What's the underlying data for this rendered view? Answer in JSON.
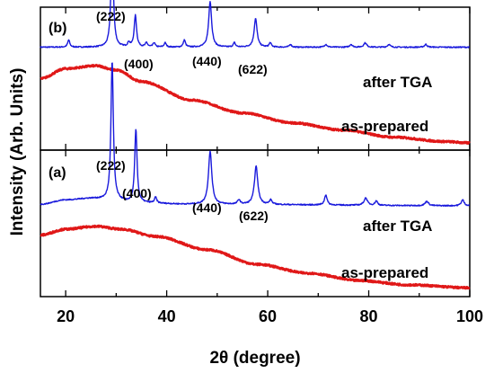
{
  "chart_data": {
    "type": "line",
    "xlabel": "2θ (degree)",
    "ylabel": "Intensity (Arb. Units)",
    "xlim": [
      15,
      100
    ],
    "xticks": [
      20,
      40,
      60,
      80,
      100
    ],
    "grid": false,
    "panels": [
      {
        "label": "(b)",
        "position": "top",
        "series": [
          {
            "name": "after TGA",
            "color": "#1a1adc",
            "baseline": 0.72,
            "peaks": [
              {
                "x": 20.6,
                "h": 0.05,
                "w": 0.25
              },
              {
                "x": 29.2,
                "h": 0.75,
                "w": 0.28
              },
              {
                "x": 32.5,
                "h": 0.03,
                "w": 0.25
              },
              {
                "x": 33.8,
                "h": 0.22,
                "w": 0.28
              },
              {
                "x": 36.0,
                "h": 0.03,
                "w": 0.25
              },
              {
                "x": 37.5,
                "h": 0.03,
                "w": 0.25
              },
              {
                "x": 39.7,
                "h": 0.03,
                "w": 0.25
              },
              {
                "x": 43.5,
                "h": 0.05,
                "w": 0.25
              },
              {
                "x": 48.6,
                "h": 0.32,
                "w": 0.35
              },
              {
                "x": 53.4,
                "h": 0.03,
                "w": 0.25
              },
              {
                "x": 57.6,
                "h": 0.2,
                "w": 0.35
              },
              {
                "x": 60.5,
                "h": 0.03,
                "w": 0.25
              },
              {
                "x": 64.5,
                "h": 0.02,
                "w": 0.25
              },
              {
                "x": 71.5,
                "h": 0.02,
                "w": 0.3
              },
              {
                "x": 76.5,
                "h": 0.02,
                "w": 0.3
              },
              {
                "x": 79.3,
                "h": 0.03,
                "w": 0.35
              },
              {
                "x": 84.0,
                "h": 0.02,
                "w": 0.3
              },
              {
                "x": 91.3,
                "h": 0.02,
                "w": 0.3
              }
            ]
          },
          {
            "name": "as-prepared",
            "color": "#e01818",
            "curve": [
              [
                15,
                0.5
              ],
              [
                20,
                0.57
              ],
              [
                26,
                0.59
              ],
              [
                30,
                0.56
              ],
              [
                35,
                0.48
              ],
              [
                45,
                0.35
              ],
              [
                55,
                0.26
              ],
              [
                65,
                0.19
              ],
              [
                75,
                0.14
              ],
              [
                85,
                0.09
              ],
              [
                95,
                0.06
              ],
              [
                100,
                0.05
              ]
            ]
          }
        ],
        "annotations": [
          "(222)",
          "(400)",
          "(440)",
          "(622)"
        ]
      },
      {
        "label": "(a)",
        "position": "bottom",
        "series": [
          {
            "name": "after TGA",
            "color": "#1a1adc",
            "curve": [
              [
                15,
                0.63
              ],
              [
                20,
                0.66
              ],
              [
                25,
                0.67
              ],
              [
                29,
                0.66
              ],
              [
                34,
                0.64
              ],
              [
                45,
                0.63
              ],
              [
                100,
                0.62
              ]
            ],
            "peaks": [
              {
                "x": 29.2,
                "h": 0.95,
                "w": 0.28
              },
              {
                "x": 33.9,
                "h": 0.5,
                "w": 0.28
              },
              {
                "x": 37.8,
                "h": 0.04,
                "w": 0.25
              },
              {
                "x": 48.6,
                "h": 0.36,
                "w": 0.4
              },
              {
                "x": 54.3,
                "h": 0.03,
                "w": 0.3
              },
              {
                "x": 57.7,
                "h": 0.26,
                "w": 0.4
              },
              {
                "x": 60.6,
                "h": 0.03,
                "w": 0.3
              },
              {
                "x": 71.5,
                "h": 0.07,
                "w": 0.3
              },
              {
                "x": 79.4,
                "h": 0.05,
                "w": 0.4
              },
              {
                "x": 81.5,
                "h": 0.03,
                "w": 0.3
              },
              {
                "x": 91.5,
                "h": 0.03,
                "w": 0.4
              },
              {
                "x": 98.6,
                "h": 0.04,
                "w": 0.35
              }
            ]
          },
          {
            "name": "as-prepared",
            "color": "#e01818",
            "curve": [
              [
                15,
                0.42
              ],
              [
                20,
                0.46
              ],
              [
                26,
                0.48
              ],
              [
                31,
                0.46
              ],
              [
                38,
                0.41
              ],
              [
                48,
                0.32
              ],
              [
                58,
                0.22
              ],
              [
                68,
                0.16
              ],
              [
                78,
                0.11
              ],
              [
                88,
                0.08
              ],
              [
                100,
                0.06
              ]
            ]
          }
        ],
        "annotations": [
          "(222)",
          "(400)",
          "(440)",
          "(622)"
        ]
      }
    ]
  }
}
